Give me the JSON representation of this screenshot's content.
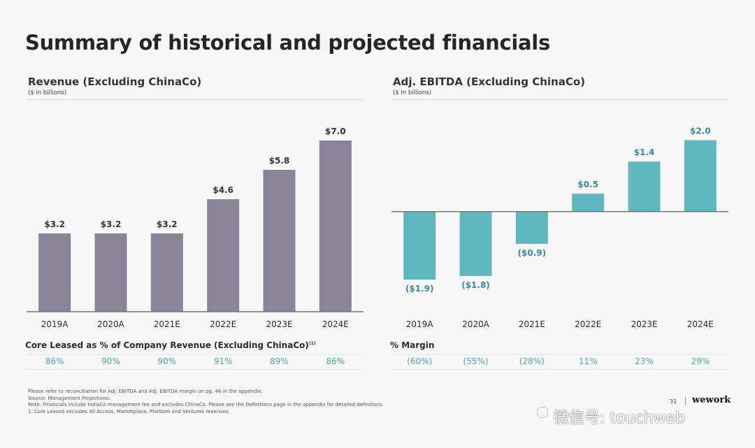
{
  "title": "Summary of historical and projected financials",
  "left_panel": {
    "title": "Revenue (Excluding ChinaCo)",
    "subtitle": "($ in billions)",
    "metric_label": "Core Leased as % of Company Revenue (Excluding ChinaCo)",
    "metric_footnote": "(1)",
    "metric_values": [
      "86%",
      "90%",
      "90%",
      "91%",
      "89%",
      "86%"
    ]
  },
  "right_panel": {
    "title": "Adj. EBITDA (Excluding ChinaCo)",
    "subtitle": "($ in billions)",
    "metric_label": "% Margin",
    "metric_values": [
      "(60%)",
      "(55%)",
      "(28%)",
      "11%",
      "23%",
      "29%"
    ]
  },
  "chart_data": [
    {
      "type": "bar",
      "title": "Revenue (Excluding ChinaCo)",
      "ylabel": "$ in billions",
      "categories": [
        "2019A",
        "2020A",
        "2021E",
        "2022E",
        "2023E",
        "2024E"
      ],
      "values": [
        3.2,
        3.2,
        3.2,
        4.6,
        5.8,
        7.0
      ],
      "data_labels": [
        "$3.2",
        "$3.2",
        "$3.2",
        "$4.6",
        "$5.8",
        "$7.0"
      ],
      "ylim": [
        0,
        7.6
      ],
      "color": "#8a8498"
    },
    {
      "type": "bar",
      "title": "Adj. EBITDA (Excluding ChinaCo)",
      "ylabel": "$ in billions",
      "categories": [
        "2019A",
        "2020A",
        "2021E",
        "2022E",
        "2023E",
        "2024E"
      ],
      "values": [
        -1.9,
        -1.8,
        -0.9,
        0.5,
        1.4,
        2.0
      ],
      "data_labels": [
        "($1.9)",
        "($1.8)",
        "($0.9)",
        "$0.5",
        "$1.4",
        "$2.0"
      ],
      "ylim": [
        -2.8,
        2.4
      ],
      "color": "#5fb8c0"
    }
  ],
  "notes": [
    "Please refer to reconciliation for Adj. EBITDA and Adj. EBITDA margin on pg. 46 in the appendix.",
    "Source: Management Projections.",
    "Note: Financials include IndiaCo management fee and excludes ChinaCo. Please see the Definitions page in the appendix for detailed definitions.",
    "1.        Core Leased excludes All Access, Marketplace, Platform and Ventures revenues."
  ],
  "footer": {
    "page": "31",
    "brand": "wework"
  },
  "watermark": "微信号: touchweb"
}
